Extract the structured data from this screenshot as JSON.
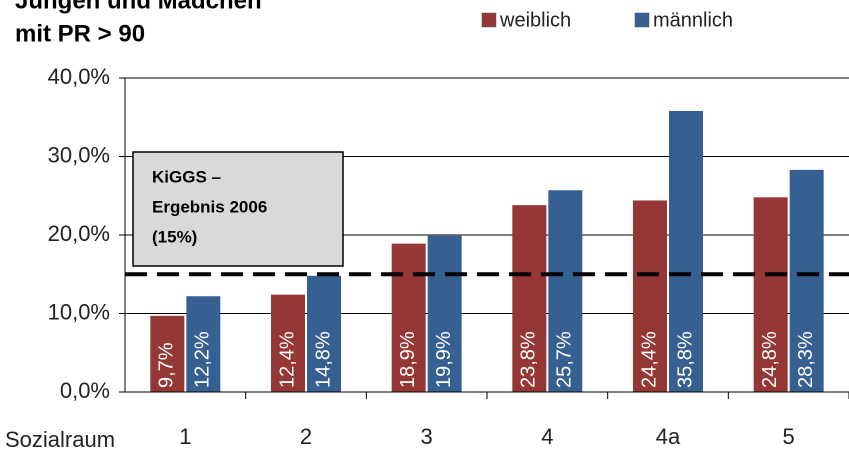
{
  "chart_data": {
    "type": "bar",
    "title": [
      "Jungen und Mädchen",
      "mit PR > 90"
    ],
    "x_label": "Sozialraum",
    "categories": [
      "1",
      "2",
      "3",
      "4",
      "4a",
      "5"
    ],
    "series": [
      {
        "name": "weiblich",
        "color": "#953735",
        "values": [
          9.7,
          12.4,
          18.9,
          23.8,
          24.4,
          24.8
        ],
        "value_labels": [
          "9,7%",
          "12,4%",
          "18,9%",
          "23,8%",
          "24,4%",
          "24,8%"
        ]
      },
      {
        "name": "männlich",
        "color": "#376092",
        "values": [
          12.2,
          14.8,
          19.9,
          25.7,
          35.8,
          28.3
        ],
        "value_labels": [
          "12,2%",
          "14,8%",
          "19,9%",
          "25,7%",
          "35,8%",
          "28,3%"
        ]
      }
    ],
    "ylim": [
      0,
      40
    ],
    "yticks": [
      {
        "value": 0,
        "label": "0,0%"
      },
      {
        "value": 10,
        "label": "10,0%"
      },
      {
        "value": 20,
        "label": "20,0%"
      },
      {
        "value": 30,
        "label": "30,0%"
      },
      {
        "value": 40,
        "label": "40,0%"
      }
    ],
    "grid": true,
    "legend": "top-right",
    "reference_line": {
      "value": 15
    },
    "annotation": [
      "KiGGS –",
      "Ergebnis 2006",
      "(15%)"
    ]
  }
}
